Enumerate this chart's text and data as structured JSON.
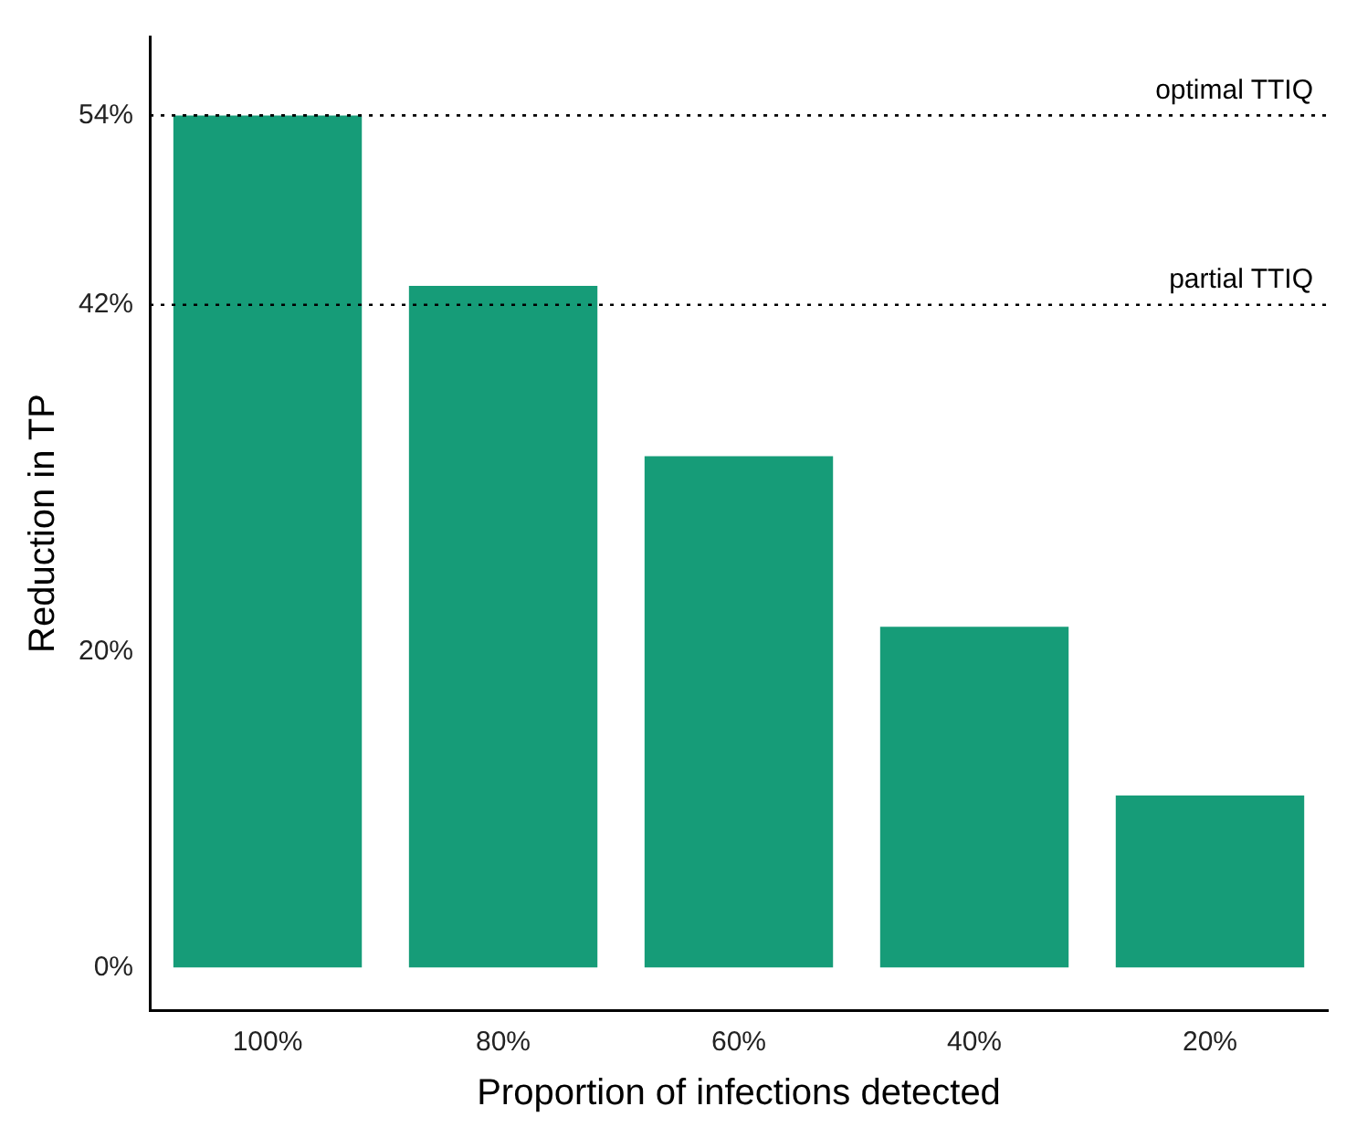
{
  "chart_data": {
    "type": "bar",
    "xlabel": "Proportion of infections detected",
    "ylabel": "Reduction in TP",
    "categories": [
      "100%",
      "80%",
      "60%",
      "40%",
      "20%"
    ],
    "values": [
      54,
      43.2,
      32.4,
      21.6,
      10.9
    ],
    "color": "#169c78",
    "ylim": [
      -2.7,
      59
    ],
    "yticks": [
      {
        "value": 0,
        "label": "0%"
      },
      {
        "value": 20,
        "label": "20%"
      },
      {
        "value": 42,
        "label": "42%"
      },
      {
        "value": 54,
        "label": "54%"
      }
    ],
    "grid": false,
    "legend": false,
    "ref_lines": [
      {
        "axis": "y",
        "value": 54,
        "label": "optimal TTIQ",
        "line_style": "dotted",
        "color": "#000000"
      },
      {
        "axis": "y",
        "value": 42,
        "label": "partial TTIQ",
        "line_style": "dotted",
        "color": "#000000"
      }
    ]
  }
}
